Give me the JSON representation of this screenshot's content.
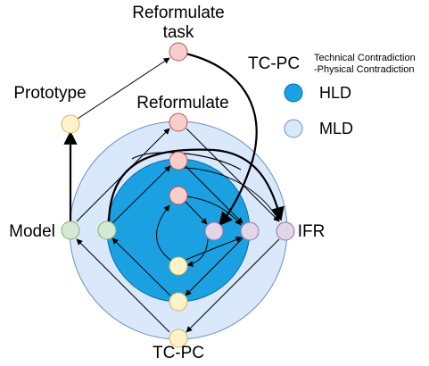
{
  "labels": {
    "reformulate_task_line1": "Reformulate",
    "reformulate_task_line2": "task",
    "prototype": "Prototype",
    "reformulate": "Reformulate",
    "model": "Model",
    "ifr": "IFR",
    "tcpc_bottom": "TC-PC"
  },
  "legend": {
    "tcpc_label": "TC-PC",
    "tcpc_desc_line1": "Technical Contradiction",
    "tcpc_desc_line2": "-Physical Contradiction",
    "hld_label": "HLD",
    "mld_label": "MLD"
  },
  "colors": {
    "mld_fill": "#dae8fc",
    "mld_stroke": "#6c8ebf",
    "hld_fill": "#1ba1e2",
    "hld_stroke": "#006eaf",
    "red_node_fill": "#f8cecc",
    "red_node_stroke": "#b85450",
    "yellow_node_fill": "#fff2cc",
    "yellow_node_stroke": "#d6b656",
    "green_node_fill": "#d5e8d4",
    "green_node_stroke": "#82b366",
    "purple_node_fill": "#e1d5e7",
    "purple_node_stroke": "#9673a6"
  }
}
